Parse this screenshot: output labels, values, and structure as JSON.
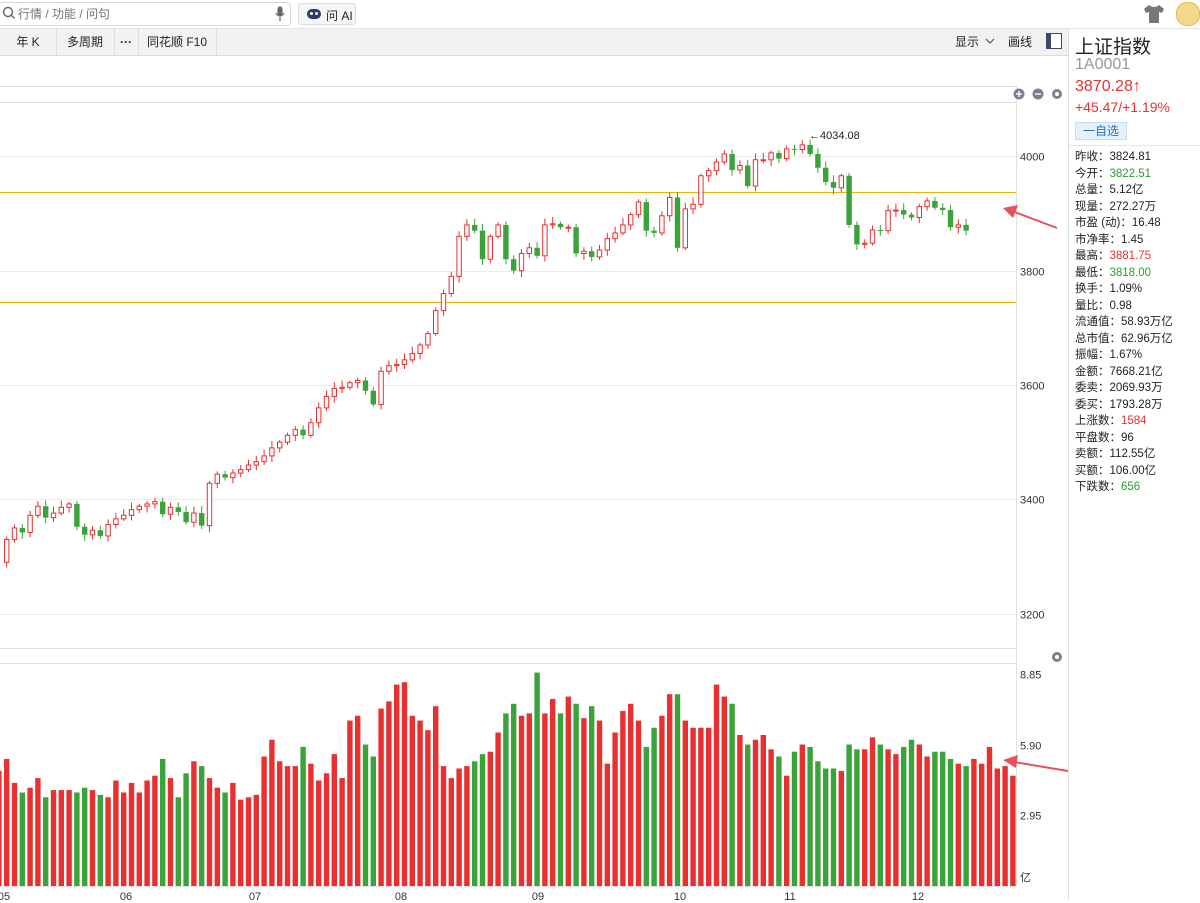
{
  "search": {
    "placeholder": "行情 / 功能 / 问句"
  },
  "ai_button": {
    "label": "问 AI"
  },
  "toolbar": {
    "left": [
      "年 K",
      "多周期",
      "···",
      "同花顺 F10"
    ],
    "display": "显示",
    "draw": "画线"
  },
  "colors": {
    "up": "#e93030",
    "down": "#3aa33a",
    "level_line": "#f0b400",
    "annotation_arrow": "#e8505b"
  },
  "icons": [
    "search-icon",
    "mic-icon",
    "robot-icon",
    "shirt-icon",
    "avatar-icon",
    "chevron-down-icon",
    "layout-icon",
    "zoom-in-icon",
    "zoom-out-icon",
    "gear-icon"
  ],
  "stock": {
    "name": "上证指数",
    "code": "1A0001",
    "price": "3870.28",
    "price_arrow": "↑",
    "change": "+45.47/+1.19%",
    "watch_button": "一自选",
    "stats": [
      {
        "label": "昨收",
        "value": "3824.81",
        "tone": ""
      },
      {
        "label": "今开",
        "value": "3822.51",
        "tone": "green"
      },
      {
        "label": "总量",
        "value": "5.12亿",
        "tone": ""
      },
      {
        "label": "现量",
        "value": "272.27万",
        "tone": ""
      },
      {
        "label": "市盈 (动)",
        "value": "16.48",
        "tone": ""
      },
      {
        "label": "市净率",
        "value": "1.45",
        "tone": ""
      },
      {
        "label": "最高",
        "value": "3881.75",
        "tone": "red"
      },
      {
        "label": "最低",
        "value": "3818.00",
        "tone": "green"
      },
      {
        "label": "换手",
        "value": "1.09%",
        "tone": ""
      },
      {
        "label": "量比",
        "value": "0.98",
        "tone": ""
      },
      {
        "label": "流通值",
        "value": "58.93万亿",
        "tone": ""
      },
      {
        "label": "总市值",
        "value": "62.96万亿",
        "tone": ""
      },
      {
        "label": "振幅",
        "value": "1.67%",
        "tone": ""
      },
      {
        "label": "金额",
        "value": "7668.21亿",
        "tone": ""
      },
      {
        "label": "委卖",
        "value": "2069.93万",
        "tone": ""
      },
      {
        "label": "委买",
        "value": "1793.28万",
        "tone": ""
      },
      {
        "label": "上涨数",
        "value": "1584",
        "tone": "red"
      },
      {
        "label": "平盘数",
        "value": "96",
        "tone": ""
      },
      {
        "label": "卖额",
        "value": "112.55亿",
        "tone": ""
      },
      {
        "label": "买额",
        "value": "106.00亿",
        "tone": ""
      },
      {
        "label": "下跌数",
        "value": "656",
        "tone": "green"
      }
    ]
  },
  "chart_data": {
    "type": "candlestick",
    "price_axis": {
      "ticks": [
        "4000",
        "3800",
        "3600",
        "3400",
        "3200"
      ],
      "range": [
        3140,
        4095
      ]
    },
    "high_label": "←4034.08",
    "high_value": 4034.08,
    "horizontal_levels": [
      3937,
      3745
    ],
    "x_labels": [
      "05",
      "06",
      "07",
      "08",
      "09",
      "10",
      "11",
      "12"
    ],
    "path": [
      3290,
      3330,
      3350,
      3342,
      3372,
      3388,
      3368,
      3376,
      3386,
      3392,
      3352,
      3338,
      3346,
      3336,
      3356,
      3366,
      3372,
      3382,
      3388,
      3392,
      3396,
      3374,
      3386,
      3378,
      3360,
      3376,
      3354,
      3428,
      3444,
      3438,
      3446,
      3452,
      3460,
      3466,
      3476,
      3490,
      3500,
      3512,
      3522,
      3512,
      3534,
      3560,
      3580,
      3594,
      3596,
      3604,
      3608,
      3590,
      3566,
      3624,
      3634,
      3636,
      3644,
      3655,
      3670,
      3690,
      3730,
      3760,
      3790,
      3860,
      3880,
      3870,
      3820,
      3860,
      3880,
      3820,
      3800,
      3830,
      3840,
      3826,
      3880,
      3882,
      3876,
      3876,
      3830,
      3834,
      3824,
      3836,
      3856,
      3866,
      3880,
      3898,
      3920,
      3870,
      3866,
      3896,
      3928,
      3840,
      3908,
      3916,
      3966,
      3975,
      3990,
      4004,
      3976,
      3984,
      3948,
      3994,
      3994,
      4006,
      3996,
      4013,
      4012,
      4020,
      4004,
      3980,
      3955,
      3945,
      3966,
      3880,
      3846,
      3848,
      3871,
      3870,
      3905,
      3906,
      3898,
      3893,
      3912,
      3922,
      3910,
      3906,
      3876,
      3880,
      3870
    ],
    "volume_axis": {
      "ticks": [
        "8.85",
        "5.90",
        "2.95"
      ],
      "unit": "亿",
      "range": [
        0,
        9.3
      ]
    },
    "volumes": [
      4.8,
      5.3,
      4.3,
      3.9,
      4.1,
      4.5,
      3.7,
      4.0,
      4.0,
      4.0,
      3.9,
      4.1,
      4.0,
      3.8,
      3.7,
      4.4,
      3.9,
      4.3,
      3.9,
      4.4,
      4.6,
      5.3,
      4.5,
      3.7,
      4.7,
      5.2,
      5.0,
      4.5,
      4.1,
      3.9,
      4.3,
      3.6,
      3.7,
      3.8,
      5.4,
      6.1,
      5.2,
      5.0,
      5.0,
      5.8,
      5.1,
      4.4,
      4.7,
      5.5,
      4.5,
      6.9,
      7.1,
      5.9,
      5.4,
      7.4,
      7.7,
      8.4,
      8.5,
      7.1,
      6.9,
      6.5,
      7.5,
      5.0,
      4.5,
      4.9,
      5.0,
      5.2,
      5.5,
      5.6,
      6.4,
      7.2,
      7.6,
      7.1,
      7.2,
      8.9,
      7.2,
      7.8,
      7.2,
      7.9,
      7.6,
      7.0,
      7.5,
      6.9,
      5.1,
      6.4,
      7.3,
      7.6,
      6.9,
      5.8,
      6.6,
      7.1,
      8.0,
      8.0,
      6.9,
      6.6,
      6.6,
      6.6,
      8.4,
      7.9,
      7.6,
      6.3,
      5.9,
      6.1,
      6.3,
      5.7,
      5.4,
      4.6,
      5.6,
      5.9,
      5.8,
      5.2,
      4.9,
      4.9,
      4.8,
      5.9,
      5.7,
      5.7,
      6.2,
      5.9,
      5.7,
      5.5,
      5.8,
      6.1,
      5.9,
      5.4,
      5.6,
      5.6,
      5.3,
      5.1,
      5.0,
      5.3,
      5.1,
      5.8,
      4.9,
      5.0,
      4.6
    ]
  }
}
